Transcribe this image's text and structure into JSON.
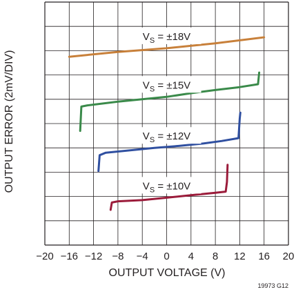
{
  "chart_data": {
    "type": "line",
    "xlabel": "OUTPUT VOLTAGE (V)",
    "ylabel": "OUTPUT ERROR (2mV/DIV)",
    "xlim": [
      -20,
      20
    ],
    "ylim": [
      0,
      10
    ],
    "x_ticks": [
      -20,
      -16,
      -12,
      -8,
      -4,
      0,
      4,
      8,
      12,
      16,
      20
    ],
    "x_tick_labels": [
      "−20",
      "−16",
      "−12",
      "−8",
      "−4",
      "0",
      "4",
      "8",
      "12",
      "16",
      "20"
    ],
    "y_grid_divisions": 10,
    "grid": true,
    "figure_code": "19973 G12",
    "series": [
      {
        "label_prefix": "V",
        "label_sub": "S",
        "label_suffix": " = ±18V",
        "color": "#c8803a",
        "points": [
          [
            -16,
            7.75
          ],
          [
            -8,
            7.95
          ],
          [
            0,
            8.1
          ],
          [
            8,
            8.3
          ],
          [
            16,
            8.55
          ]
        ]
      },
      {
        "label_prefix": "V",
        "label_sub": "S",
        "label_suffix": " = ±15V",
        "color": "#3a8a4a",
        "points": [
          [
            -14.2,
            4.7
          ],
          [
            -14.0,
            5.7
          ],
          [
            -13.0,
            5.75
          ],
          [
            -8,
            5.9
          ],
          [
            -4,
            6.0
          ],
          [
            0,
            6.1
          ],
          [
            4,
            6.25
          ],
          [
            8,
            6.38
          ],
          [
            12,
            6.5
          ],
          [
            15.0,
            6.62
          ],
          [
            15.2,
            7.1
          ]
        ]
      },
      {
        "label_prefix": "V",
        "label_sub": "S",
        "label_suffix": " = ±12V",
        "color": "#2f4fa0",
        "points": [
          [
            -11.2,
            3.05
          ],
          [
            -11.0,
            3.7
          ],
          [
            -10.0,
            3.8
          ],
          [
            -6,
            3.9
          ],
          [
            -2,
            4.0
          ],
          [
            2,
            4.08
          ],
          [
            6,
            4.18
          ],
          [
            9,
            4.28
          ],
          [
            11.8,
            4.4
          ],
          [
            12.0,
            5.2
          ],
          [
            12.1,
            5.45
          ]
        ]
      },
      {
        "label_prefix": "V",
        "label_sub": "S",
        "label_suffix": " = ±10V",
        "color": "#9b1b3a",
        "points": [
          [
            -9.2,
            1.45
          ],
          [
            -9.0,
            1.75
          ],
          [
            -8.0,
            1.8
          ],
          [
            -4,
            1.85
          ],
          [
            0,
            1.95
          ],
          [
            4,
            2.05
          ],
          [
            8,
            2.15
          ],
          [
            9.7,
            2.2
          ],
          [
            9.9,
            2.6
          ],
          [
            10.0,
            3.3
          ]
        ]
      }
    ]
  }
}
